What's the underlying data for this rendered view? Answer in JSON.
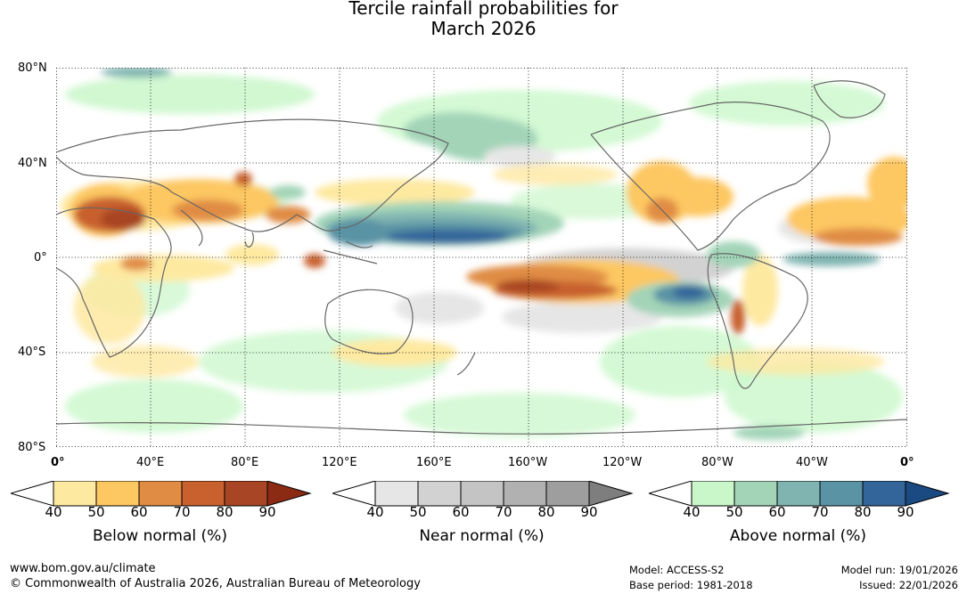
{
  "title_line1": "Tercile rainfall probabilities for",
  "title_line2": "March 2026",
  "lat_labels": [
    "80°N",
    "40°N",
    "0°",
    "40°S",
    "80°S"
  ],
  "lon_labels": [
    "0°",
    "40°E",
    "80°E",
    "120°E",
    "160°E",
    "160°W",
    "120°W",
    "80°W",
    "40°W",
    "0°"
  ],
  "legends": [
    {
      "title": "Below normal (%)",
      "ticks": [
        "40",
        "50",
        "60",
        "70",
        "80",
        "90"
      ],
      "colors": [
        "#ffffff",
        "#fee9a0",
        "#fdc762",
        "#e08c44",
        "#c8612e",
        "#a84524",
        "#8b2b14"
      ]
    },
    {
      "title": "Near normal (%)",
      "ticks": [
        "40",
        "50",
        "60",
        "70",
        "80",
        "90"
      ],
      "colors": [
        "#ffffff",
        "#e6e6e6",
        "#d2d2d2",
        "#c4c4c4",
        "#b1b1b1",
        "#9e9e9e",
        "#7e7e7e"
      ]
    },
    {
      "title": "Above normal (%)",
      "ticks": [
        "40",
        "50",
        "60",
        "70",
        "80",
        "90"
      ],
      "colors": [
        "#ffffff",
        "#c9f7c9",
        "#a3d4b8",
        "#7fb4b1",
        "#5a93a4",
        "#33659a",
        "#1b4a82"
      ]
    }
  ],
  "footer": {
    "url": "www.bom.gov.au/climate",
    "copyright": "© Commonwealth of Australia 2026, Australian Bureau of Meteorology",
    "model": "Model: ACCESS-S2",
    "base_period": "Base period: 1981-2018",
    "model_run": "Model run: 19/01/2026",
    "issued": "Issued: 22/01/2026"
  }
}
